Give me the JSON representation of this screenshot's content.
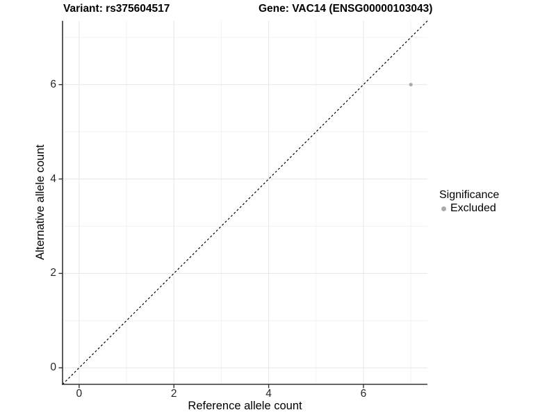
{
  "chart_data": {
    "type": "scatter",
    "title_left": "Variant: rs375604517",
    "title_right": "Gene: VAC14 (ENSG00000103043)",
    "xlabel": "Reference allele count",
    "ylabel": "Alternative allele count",
    "xlim": [
      -0.35,
      7.35
    ],
    "ylim": [
      -0.35,
      7.35
    ],
    "x_ticks": [
      0,
      2,
      4,
      6
    ],
    "y_ticks": [
      0,
      2,
      4,
      6
    ],
    "x_minor_ticks": [
      1,
      3,
      5,
      7
    ],
    "y_minor_ticks": [
      1,
      3,
      5,
      7
    ],
    "grid": "major and minor gridlines on white background",
    "reference_line": {
      "type": "identity y=x",
      "style": "dashed",
      "color": "#000000"
    },
    "series": [
      {
        "name": "Excluded",
        "color": "#AAAAAA",
        "points": [
          {
            "x": 7,
            "y": 6
          }
        ]
      }
    ],
    "legend": {
      "title": "Significance",
      "position": "right",
      "items": [
        {
          "label": "Excluded",
          "color": "#AAAAAA"
        }
      ]
    }
  },
  "colors": {
    "grid_major": "#E6E6E6",
    "grid_minor": "#F2F2F2",
    "axis_line": "#333333",
    "tick_mark": "#333333",
    "point": "#AAAAAA",
    "dashed_line": "#000000"
  }
}
